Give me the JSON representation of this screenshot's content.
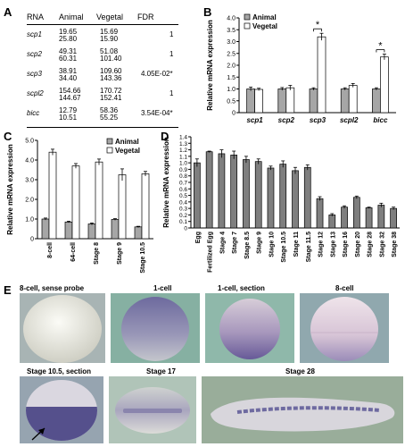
{
  "panels": {
    "A": "A",
    "B": "B",
    "C": "C",
    "D": "D",
    "E": "E"
  },
  "table": {
    "headers": [
      "RNA",
      "Animal",
      "Vegetal",
      "FDR"
    ],
    "rows": [
      {
        "gene": "scp1",
        "animal": [
          "19.65",
          "25.80"
        ],
        "vegetal": [
          "15.69",
          "15.90"
        ],
        "fdr": "1"
      },
      {
        "gene": "scp2",
        "animal": [
          "49.31",
          "60.31"
        ],
        "vegetal": [
          "51.08",
          "101.40"
        ],
        "fdr": "1"
      },
      {
        "gene": "scp3",
        "animal": [
          "38.91",
          "34.40"
        ],
        "vegetal": [
          "109.60",
          "143.36"
        ],
        "fdr": "4.05E-02*"
      },
      {
        "gene": "scpl2",
        "animal": [
          "154.66",
          "144.67"
        ],
        "vegetal": [
          "170.72",
          "152.41"
        ],
        "fdr": "1"
      },
      {
        "gene": "bicc",
        "animal": [
          "12.79",
          "10.51"
        ],
        "vegetal": [
          "58.36",
          "55.25"
        ],
        "fdr": "3.54E-04*"
      }
    ]
  },
  "chart_data": [
    {
      "panel": "B",
      "type": "bar",
      "categories": [
        "scp1",
        "scp2",
        "scp3",
        "scpl2",
        "bicc"
      ],
      "series": [
        {
          "name": "Animal",
          "values": [
            1.0,
            1.0,
            1.0,
            1.0,
            1.0
          ],
          "errors": [
            0.08,
            0.06,
            0.05,
            0.05,
            0.05
          ],
          "color": "#a6a6a6"
        },
        {
          "name": "Vegetal",
          "values": [
            0.98,
            1.05,
            3.2,
            1.15,
            2.35
          ],
          "errors": [
            0.05,
            0.1,
            0.15,
            0.08,
            0.12
          ],
          "color": "#ffffff"
        }
      ],
      "ylabel": "Relative mRNA expression",
      "ylim": [
        0,
        4
      ],
      "yticks": [
        "0",
        "0.5",
        "1.0",
        "1.5",
        "2.0",
        "2.5",
        "3.0",
        "3.5",
        "4.0"
      ],
      "significance": [
        {
          "category": "scp3",
          "label": "*"
        },
        {
          "category": "bicc",
          "label": "*"
        }
      ],
      "legend": "top-left"
    },
    {
      "panel": "C",
      "type": "bar",
      "categories": [
        "8-cell",
        "64-cell",
        "Stage 8",
        "Stage 9",
        "Stage 10.5"
      ],
      "series": [
        {
          "name": "Animal",
          "values": [
            1.0,
            0.85,
            0.75,
            0.98,
            0.6
          ],
          "errors": [
            0.05,
            0.04,
            0.05,
            0.04,
            0.03
          ],
          "color": "#a6a6a6"
        },
        {
          "name": "Vegetal",
          "values": [
            4.4,
            3.7,
            3.9,
            3.25,
            3.3
          ],
          "errors": [
            0.15,
            0.12,
            0.15,
            0.3,
            0.12
          ],
          "color": "#ffffff"
        }
      ],
      "ylabel": "Relative mRNA expression",
      "ylim": [
        0,
        5
      ],
      "yticks": [
        "0",
        "1.0",
        "2.0",
        "3.0",
        "4.0",
        "5.0"
      ],
      "legend": "top-right"
    },
    {
      "panel": "D",
      "type": "bar",
      "categories": [
        "Egg",
        "Fertilized Egg",
        "Stage 4",
        "Stage 7",
        "Stage 8.5",
        "Stage 9",
        "Stage 10",
        "Stage 10.5",
        "Stage 11",
        "Stage 11.5",
        "Stage 12",
        "Stage 13",
        "Stage 16",
        "Stage 20",
        "Stage 28",
        "Stage 32",
        "Stage 38"
      ],
      "values": [
        1.0,
        1.17,
        1.14,
        1.12,
        1.05,
        1.02,
        0.92,
        0.98,
        0.88,
        0.93,
        0.45,
        0.2,
        0.32,
        0.47,
        0.31,
        0.35,
        0.3
      ],
      "errors": [
        0.06,
        0.01,
        0.06,
        0.06,
        0.05,
        0.04,
        0.03,
        0.05,
        0.05,
        0.04,
        0.03,
        0.02,
        0.02,
        0.02,
        0.01,
        0.03,
        0.02
      ],
      "color": "#7f7f7f",
      "ylabel": "Relative mRNA expression",
      "ylim": [
        0,
        1.4
      ],
      "yticks": [
        "0",
        "0.1",
        "0.2",
        "0.3",
        "0.4",
        "0.5",
        "0.6",
        "0.7",
        "0.8",
        "0.9",
        "1.0",
        "1.1",
        "1.2",
        "1.3",
        "1.4"
      ]
    }
  ],
  "images": [
    {
      "label": "8-cell, sense probe"
    },
    {
      "label": "1-cell"
    },
    {
      "label": "1-cell, section"
    },
    {
      "label": "8-cell"
    },
    {
      "label": "Stage 10.5, section"
    },
    {
      "label": "Stage 17"
    },
    {
      "label": "Stage 28"
    }
  ],
  "colors": {
    "animal_bar": "#a6a6a6",
    "vegetal_bar": "#ffffff",
    "stage_bar": "#7f7f7f",
    "photo_green": "#86b2a4",
    "stain_purple": "#5a5096"
  }
}
